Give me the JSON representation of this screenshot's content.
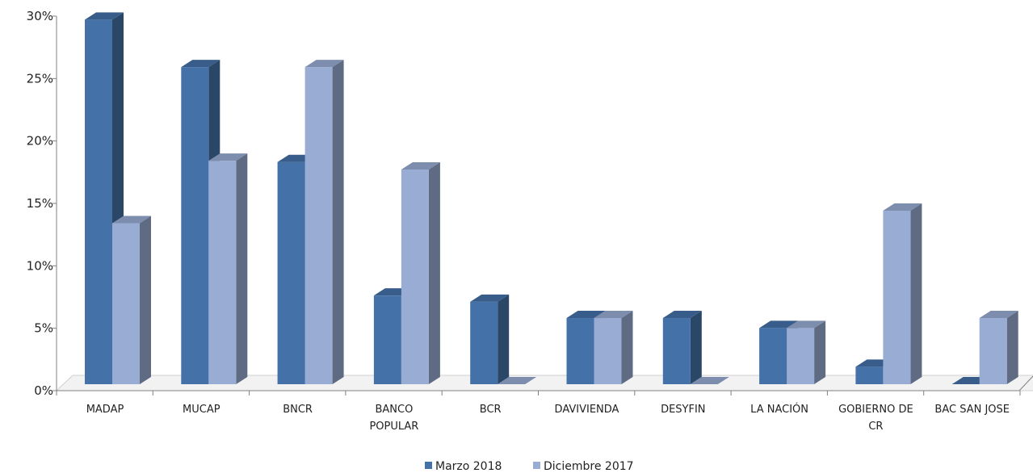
{
  "colors": {
    "series1": "#4472A8",
    "series2": "#98ACD4",
    "axis": "#808080",
    "grid": "#d0d0d0"
  },
  "chart_data": {
    "type": "bar",
    "grid": false,
    "legend_position": "bottom",
    "ylim": [
      0,
      30
    ],
    "yticks": [
      "0%",
      "5%",
      "10%",
      "15%",
      "20%",
      "25%",
      "30%"
    ],
    "categories": [
      [
        "MADAP"
      ],
      [
        "MUCAP"
      ],
      [
        "BNCR"
      ],
      [
        "BANCO",
        "POPULAR"
      ],
      [
        "BCR"
      ],
      [
        "DAVIVIENDA"
      ],
      [
        "DESYFIN"
      ],
      [
        "LA NACIÓN"
      ],
      [
        "GOBIERNO DE",
        "CR"
      ],
      [
        "BAC SAN JOSE"
      ]
    ],
    "series": [
      {
        "name": "Marzo 2018",
        "values": [
          29.2,
          25.4,
          17.8,
          7.1,
          6.6,
          5.3,
          5.3,
          4.5,
          1.4,
          0.0
        ]
      },
      {
        "name": "Diciembre 2017",
        "values": [
          12.9,
          17.9,
          25.4,
          17.2,
          0.0,
          5.3,
          0.0,
          4.5,
          13.9,
          5.3
        ]
      }
    ]
  }
}
